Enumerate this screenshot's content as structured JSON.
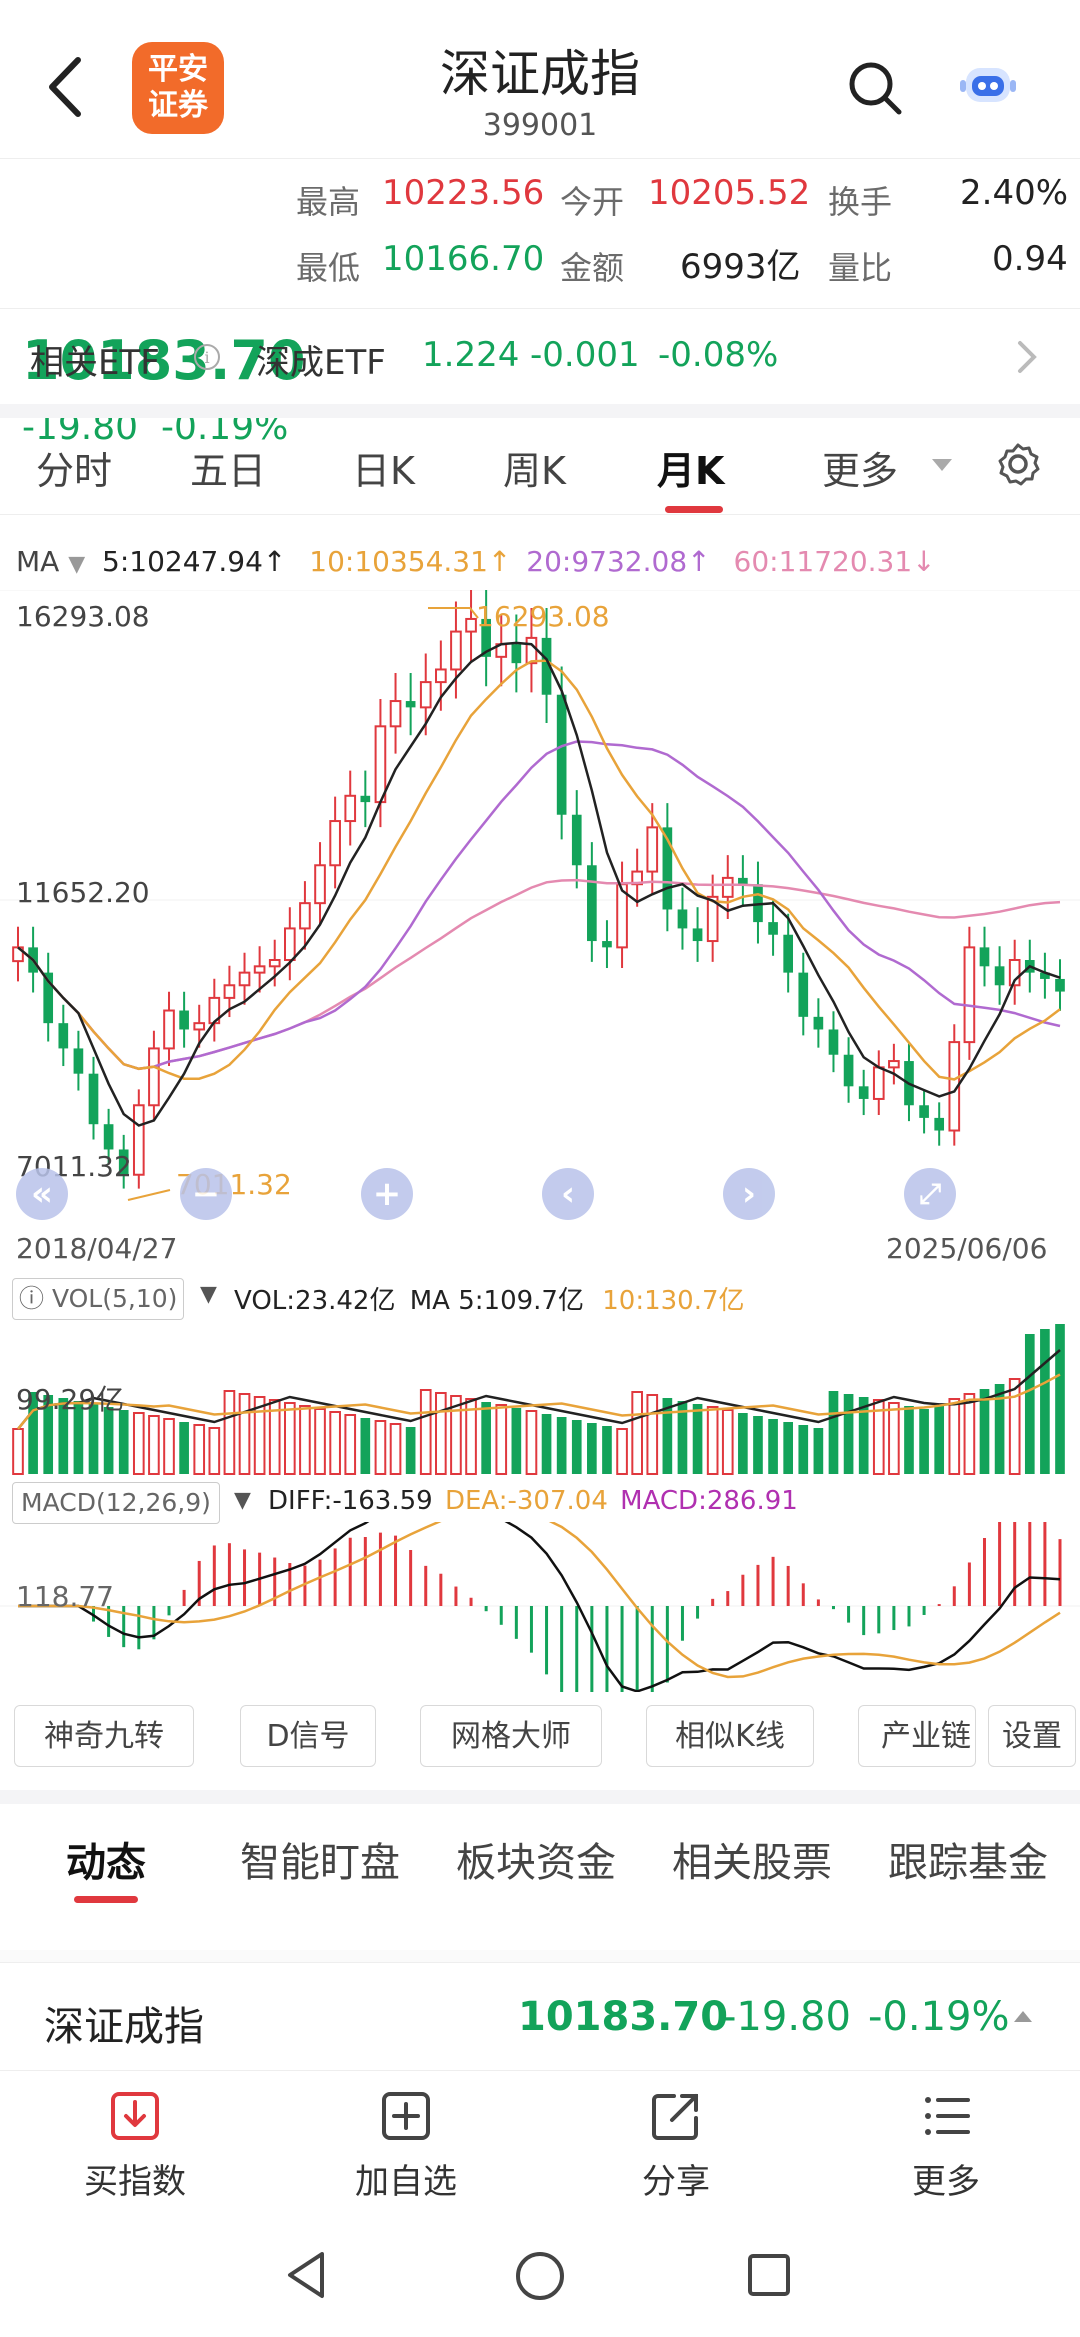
{
  "header": {
    "logo_line1": "平安",
    "logo_line2": "证券",
    "title": "深证成指",
    "code": "399001"
  },
  "quote": {
    "price": "10183.70",
    "change": "-19.80",
    "change_pct": "-0.19%",
    "high_label": "最高",
    "high": "10223.56",
    "low_label": "最低",
    "low": "10166.70",
    "open_label": "今开",
    "open": "10205.52",
    "amount_label": "金额",
    "amount": "6993亿",
    "turnover_label": "换手",
    "turnover": "2.40%",
    "volratio_label": "量比",
    "volratio": "0.94"
  },
  "etf": {
    "label": "相关ETF",
    "name": "深成ETF",
    "price": "1.224",
    "change": "-0.001",
    "change_pct": "-0.08%"
  },
  "chart_tabs": [
    "分时",
    "五日",
    "日K",
    "周K",
    "月K",
    "更多"
  ],
  "active_chart_tab": "月K",
  "ma": {
    "label": "MA",
    "ma5": "5:10247.94↑",
    "ma10": "10:10354.31↑",
    "ma20": "20:9732.08↑",
    "ma60": "60:11720.31↓"
  },
  "kline": {
    "y_top": "16293.08",
    "y_mid": "11652.20",
    "y_bottom": "7011.32",
    "max_label": "16293.08",
    "min_label": "7011.32",
    "date_start": "2018/04/27",
    "date_end": "2025/06/06"
  },
  "vol": {
    "label": "VOL(5,10)",
    "vol": "VOL:23.42亿",
    "ma5": "MA 5:109.7亿",
    "ma10": "10:130.7亿",
    "y_label": "99.29亿"
  },
  "macd": {
    "label": "MACD(12,26,9)",
    "diff": "DIFF:-163.59",
    "dea": "DEA:-307.04",
    "macd": "MACD:286.91",
    "y_label": "118.77"
  },
  "tools": [
    "神奇九转",
    "D信号",
    "网格大师",
    "相似K线",
    "产业链",
    "设置"
  ],
  "bottom_tabs": [
    "动态",
    "智能盯盘",
    "板块资金",
    "相关股票",
    "跟踪基金"
  ],
  "ticker": {
    "name": "深证成指",
    "price": "10183.70",
    "change": "-19.80",
    "change_pct": "-0.19%"
  },
  "actions": {
    "buy": "买指数",
    "add": "加自选",
    "share": "分享",
    "more": "更多"
  },
  "colors": {
    "up": "#e0383e",
    "down": "#13a35a",
    "ma5": "#222222",
    "ma10": "#e8a33a",
    "ma20": "#b06ad0",
    "ma60": "#e48ab0"
  }
}
